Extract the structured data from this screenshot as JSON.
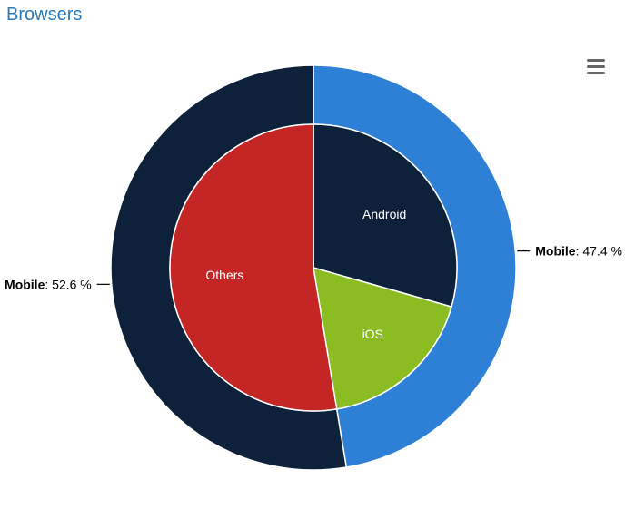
{
  "page": {
    "title": "Browsers"
  },
  "menu": {
    "icon": "hamburger-menu-icon"
  },
  "chart_data": {
    "type": "pie",
    "title": "Browsers",
    "outer_ring": {
      "slices": [
        {
          "name": "Mobile",
          "value": 47.4,
          "label": "Mobile",
          "value_text": ": 47.4 %",
          "color": "#2e7fd6"
        },
        {
          "name": "Mobile",
          "value": 52.6,
          "label": "Mobile",
          "value_text": ": 52.6 %",
          "color": "#0d223a"
        }
      ]
    },
    "inner_pie": {
      "slices": [
        {
          "name": "Android",
          "value": 29.4,
          "color": "#0d223a"
        },
        {
          "name": "iOS",
          "value": 18.0,
          "color": "#8bbc21"
        },
        {
          "name": "Others",
          "value": 52.6,
          "color": "#c42525"
        }
      ]
    }
  }
}
